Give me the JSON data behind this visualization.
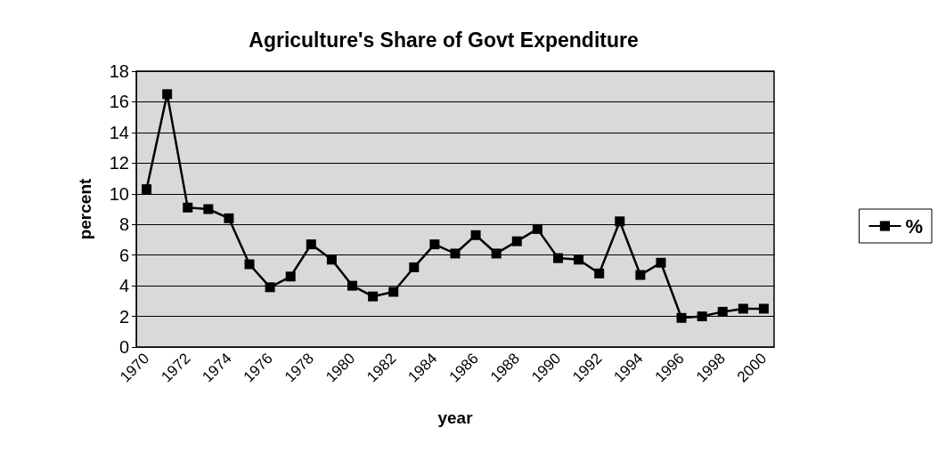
{
  "chart_data": {
    "type": "line",
    "title": "Agriculture's Share of Govt Expenditure",
    "xlabel": "year",
    "ylabel": "percent",
    "categories": [
      "1970",
      null,
      "1972",
      null,
      "1974",
      null,
      "1976",
      null,
      "1978",
      null,
      "1980",
      null,
      "1982",
      null,
      "1984",
      null,
      "1986",
      null,
      "1988",
      null,
      "1990",
      null,
      "1992",
      null,
      "1994",
      null,
      "1996",
      null,
      "1998",
      null,
      "2000"
    ],
    "series": [
      {
        "name": "%",
        "color": "#000000",
        "values": [
          10.3,
          16.5,
          9.1,
          9.0,
          8.4,
          5.4,
          3.9,
          4.6,
          6.7,
          5.7,
          4.0,
          3.3,
          3.6,
          5.2,
          6.7,
          6.1,
          7.3,
          6.1,
          6.9,
          7.7,
          5.8,
          5.7,
          4.8,
          8.2,
          4.7,
          5.5,
          1.9,
          2.0,
          2.3,
          2.5,
          2.5
        ]
      }
    ],
    "ylim": [
      0,
      18
    ],
    "yticks": [
      0,
      2,
      4,
      6,
      8,
      10,
      12,
      14,
      16,
      18
    ],
    "grid": "y",
    "legend": "right",
    "marker": "square",
    "line_style": "solid"
  }
}
